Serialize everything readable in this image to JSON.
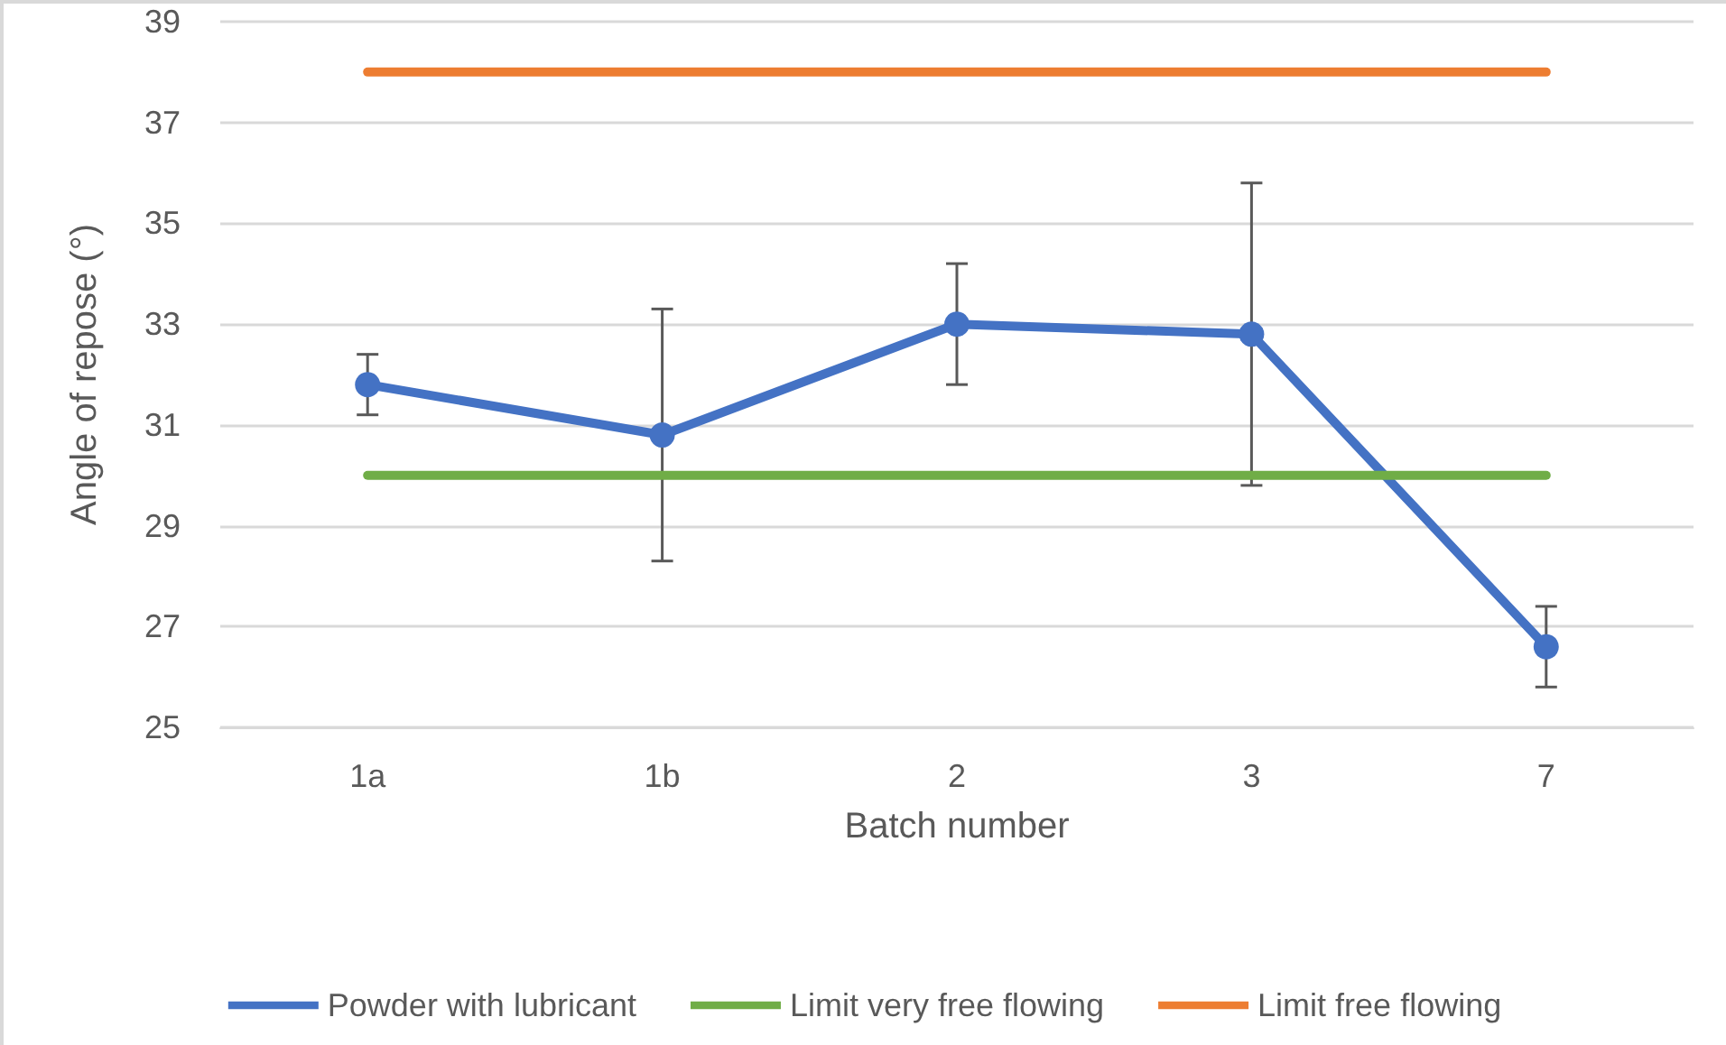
{
  "chart_data": {
    "type": "line",
    "xlabel": "Batch number",
    "ylabel": "Angle of repose (°)",
    "categories": [
      "1a",
      "1b",
      "2",
      "3",
      "7"
    ],
    "series": [
      {
        "name": "Powder with lubricant",
        "color": "#4472c4",
        "values": [
          31.8,
          30.8,
          33.0,
          32.8,
          26.6
        ],
        "errors": [
          [
            31.2,
            32.4
          ],
          [
            28.3,
            33.3
          ],
          [
            31.8,
            34.2
          ],
          [
            29.8,
            35.8
          ],
          [
            25.8,
            27.4
          ]
        ],
        "marker": "circle"
      },
      {
        "name": "Limit very free flowing",
        "color": "#70ad47",
        "values": [
          30,
          30,
          30,
          30,
          30
        ],
        "marker": "none"
      },
      {
        "name": "Limit free flowing",
        "color": "#ed7d31",
        "values": [
          38,
          38,
          38,
          38,
          38
        ],
        "marker": "none"
      }
    ],
    "ylim": [
      25,
      39
    ],
    "yticks": [
      25,
      27,
      29,
      31,
      33,
      35,
      37,
      39
    ],
    "grid": "y",
    "legend": "bottom",
    "line_style": "solid"
  }
}
